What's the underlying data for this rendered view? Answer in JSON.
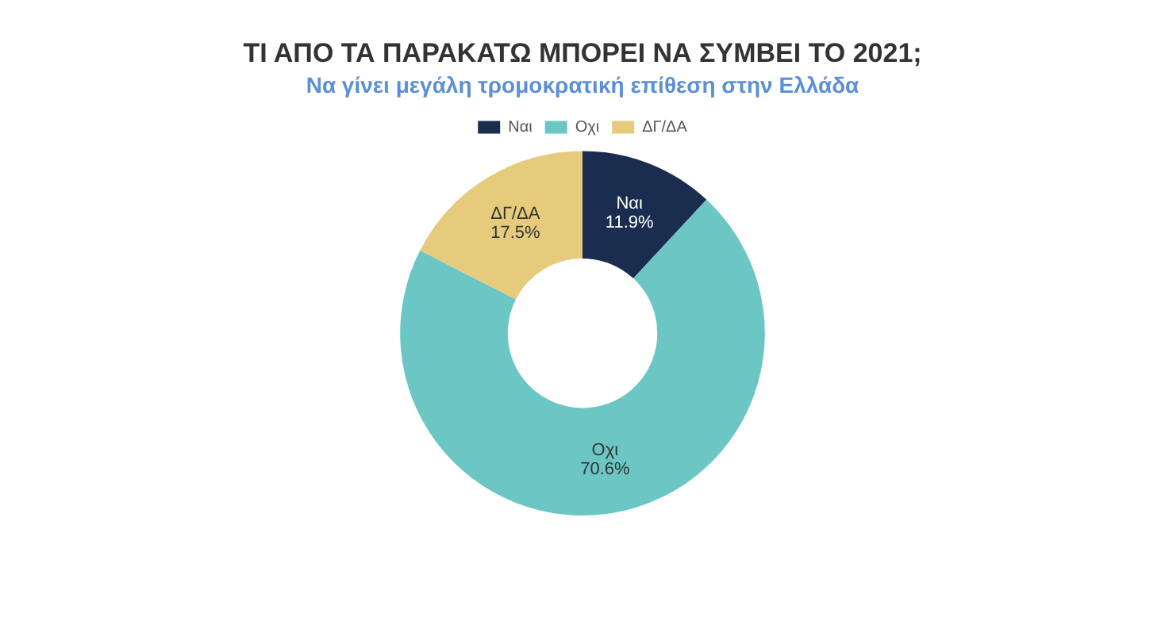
{
  "chart_data": {
    "type": "donut",
    "title": "ΤΙ ΑΠΟ ΤΑ ΠΑΡΑΚΑΤΩ ΜΠΟΡΕΙ ΝΑ ΣΥΜΒΕΙ ΤΟ 2021;",
    "subtitle": "Να γίνει μεγάλη τρομοκρατική επίθεση στην Ελλάδα",
    "categories": [
      "Ναι",
      "Οχι",
      "ΔΓ/ΔΑ"
    ],
    "values": [
      11.9,
      70.6,
      17.5
    ],
    "value_labels": [
      "11.9%",
      "70.6%",
      "17.5%"
    ],
    "colors": [
      "#1b2d4f",
      "#6cc6c4",
      "#e6cb7d"
    ],
    "legend": "top"
  }
}
